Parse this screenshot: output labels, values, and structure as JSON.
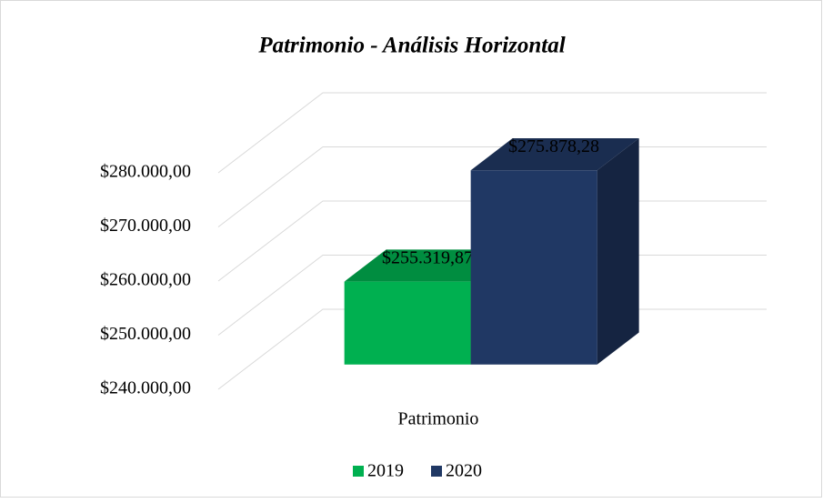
{
  "chart_data": {
    "type": "bar3d",
    "title": "Patrimonio - Análisis Horizontal",
    "categories": [
      "Patrimonio"
    ],
    "series": [
      {
        "name": "2019",
        "color": "#00b050",
        "values": [
          255319.87
        ],
        "value_labels": [
          "$255.319,87"
        ]
      },
      {
        "name": "2020",
        "color": "#203864",
        "values": [
          275878.28
        ],
        "value_labels": [
          "$275.878,28"
        ]
      }
    ],
    "ylim": [
      240000,
      280000
    ],
    "yticks": [
      {
        "value": 240000,
        "label": "$240.000,00"
      },
      {
        "value": 250000,
        "label": "$250.000,00"
      },
      {
        "value": 260000,
        "label": "$260.000,00"
      },
      {
        "value": 270000,
        "label": "$270.000,00"
      },
      {
        "value": 280000,
        "label": "$280.000,00"
      }
    ],
    "grid": true,
    "legend": "bottom"
  }
}
